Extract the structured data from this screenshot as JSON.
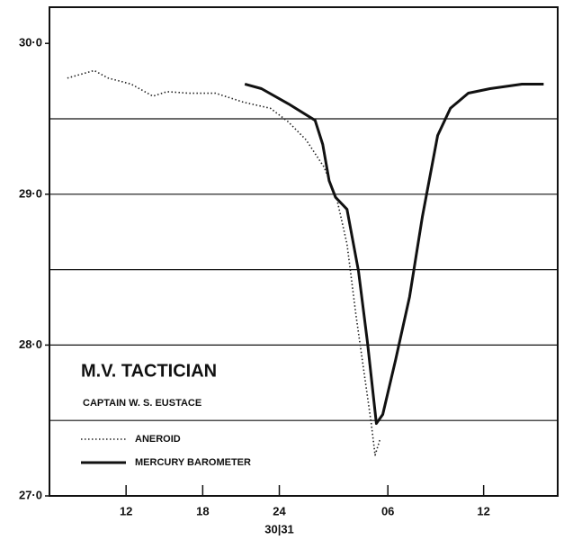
{
  "chart_data": {
    "type": "line",
    "title": "M.V. TACTICIAN",
    "subtitle": "CAPTAIN W. S. EUSTACE",
    "annotation": "30|31",
    "x": [],
    "series": [
      {
        "name": "ANEROID",
        "color": "#222222",
        "style": "dotted",
        "x": [
          -4.6,
          -2.5,
          -1.4,
          0.4,
          2.1,
          3.2,
          4.9,
          7.0,
          9.2,
          11.3,
          12.7,
          14.1,
          15.5,
          16.5,
          17.3,
          18.0,
          18.7,
          19.2,
          19.5,
          19.9
        ],
        "values": [
          29.77,
          29.82,
          29.77,
          29.73,
          29.65,
          29.68,
          29.67,
          29.67,
          29.61,
          29.57,
          29.48,
          29.36,
          29.18,
          28.97,
          28.67,
          28.2,
          27.78,
          27.48,
          27.27,
          27.38
        ]
      },
      {
        "name": "MERCURY BAROMETER",
        "color": "#111111",
        "style": "solid",
        "x": [
          9.3,
          10.6,
          12.7,
          14.8,
          15.4,
          15.9,
          16.4,
          17.3,
          18.2,
          18.9,
          19.6,
          20.1,
          21.1,
          22.2,
          23.2,
          24.4,
          25.4,
          26.8,
          28.5,
          31.0,
          32.7
        ],
        "values": [
          29.73,
          29.7,
          29.6,
          29.49,
          29.33,
          29.09,
          28.98,
          28.9,
          28.49,
          28.02,
          27.48,
          27.54,
          27.9,
          28.32,
          28.85,
          29.39,
          29.57,
          29.67,
          29.7,
          29.73,
          29.73
        ]
      }
    ],
    "xlim": [
      -6.0,
      33.8
    ],
    "xticks": [
      {
        "value": 0,
        "label": "12"
      },
      {
        "value": 6,
        "label": "18"
      },
      {
        "value": 12,
        "label": "24"
      },
      {
        "value": 20.5,
        "label": "06"
      },
      {
        "value": 28,
        "label": "12"
      }
    ],
    "ylim": [
      27.0,
      30.24
    ],
    "yticks": [
      {
        "value": 27,
        "label": "27·0"
      },
      {
        "value": 28,
        "label": "28·0"
      },
      {
        "value": 29,
        "label": "29·0"
      },
      {
        "value": 30,
        "label": "30·0"
      }
    ],
    "ygrid": [
      27.5,
      28.0,
      28.5,
      29.0,
      29.5
    ],
    "annotation_x": 12
  }
}
